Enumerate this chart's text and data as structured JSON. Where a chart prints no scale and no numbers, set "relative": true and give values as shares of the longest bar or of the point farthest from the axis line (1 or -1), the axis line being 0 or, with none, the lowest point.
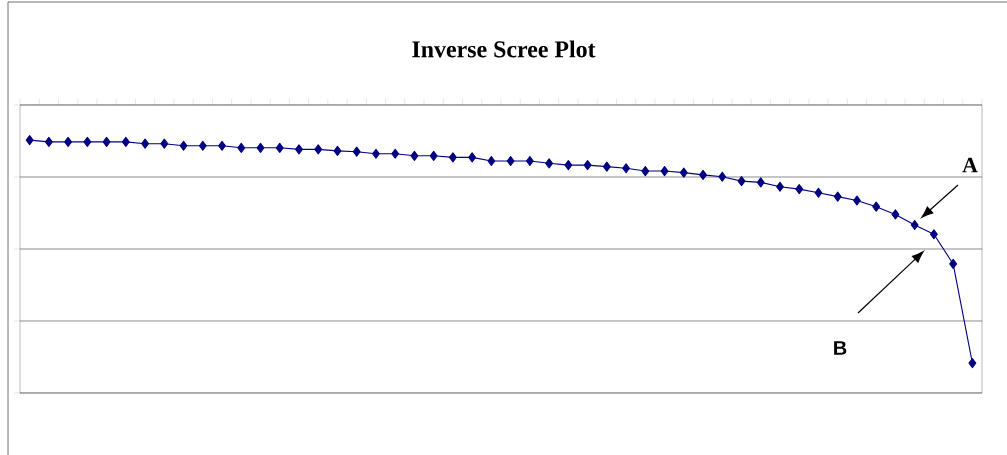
{
  "chart_data": {
    "type": "line",
    "title": "Inverse Scree Plot",
    "relative": true,
    "grid": "y",
    "tick_labels": false,
    "marker": "diamond",
    "line_style": "solid",
    "categories": [
      null,
      null,
      null,
      null,
      null,
      null,
      null,
      null,
      null,
      null,
      null,
      null,
      null,
      null,
      null,
      null,
      null,
      null,
      null,
      null,
      null,
      null,
      null,
      null,
      null,
      null,
      null,
      null,
      null,
      null,
      null,
      null,
      null,
      null,
      null,
      null,
      null,
      null,
      null,
      null,
      null,
      null,
      null,
      null,
      null,
      null,
      null,
      null,
      null,
      null
    ],
    "series": [
      {
        "color": "#000080",
        "values": [
          -0.136,
          -0.143,
          -0.143,
          -0.143,
          -0.143,
          -0.143,
          -0.15,
          -0.15,
          -0.158,
          -0.158,
          -0.158,
          -0.166,
          -0.166,
          -0.166,
          -0.172,
          -0.172,
          -0.178,
          -0.181,
          -0.189,
          -0.189,
          -0.197,
          -0.197,
          -0.203,
          -0.203,
          -0.217,
          -0.217,
          -0.217,
          -0.226,
          -0.233,
          -0.233,
          -0.239,
          -0.245,
          -0.256,
          -0.256,
          -0.262,
          -0.271,
          -0.278,
          -0.295,
          -0.3,
          -0.317,
          -0.326,
          -0.34,
          -0.355,
          -0.37,
          -0.394,
          -0.424,
          -0.465,
          -0.501,
          -0.616,
          -1
        ]
      }
    ],
    "annotations": [
      "A",
      "B"
    ]
  }
}
